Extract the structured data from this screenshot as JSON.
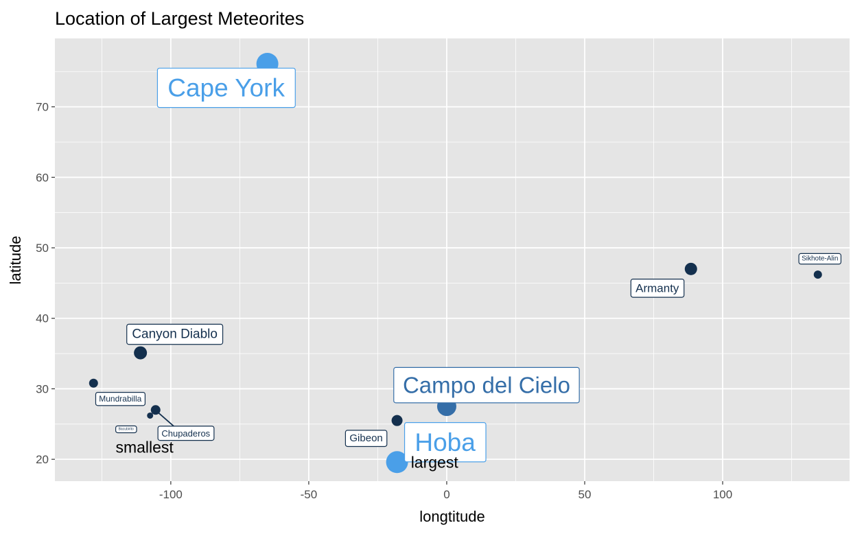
{
  "chart_data": {
    "type": "scatter",
    "title": "Location of Largest Meteorites",
    "xlabel": "longtitude",
    "ylabel": "latitude",
    "xlim": [
      -142,
      146
    ],
    "ylim": [
      16.9,
      79.7
    ],
    "x_ticks": [
      -100,
      -50,
      0,
      50,
      100
    ],
    "x_tick_labels": [
      "-100",
      "-50",
      "0",
      "50",
      "100"
    ],
    "y_ticks": [
      20,
      30,
      40,
      50,
      60,
      70
    ],
    "y_tick_labels": [
      "20",
      "30",
      "40",
      "50",
      "60",
      "70"
    ],
    "grid": true,
    "legend": "none",
    "colors": {
      "panel": "#e5e5e5",
      "grid": "#ffffff",
      "dark": "#14304e",
      "mid": "#356ea8",
      "light": "#4a9fe8"
    },
    "points": [
      {
        "name": "Cape York",
        "x": -65,
        "y": 76.1,
        "color": "#4a9fe8"
      },
      {
        "name": "Hoba",
        "x": -18,
        "y": 19.6,
        "color": "#4a9fe8"
      },
      {
        "name": "Campo del Cielo",
        "x": 0,
        "y": 27.5,
        "color": "#356ea8"
      },
      {
        "name": "Canyon Diablo",
        "x": -111,
        "y": 35.1,
        "color": "#14304e"
      },
      {
        "name": "Armanty",
        "x": 88.5,
        "y": 47.0,
        "color": "#14304e"
      },
      {
        "name": "Gibeon",
        "x": -18,
        "y": 25.5,
        "color": "#14304e"
      },
      {
        "name": "Chupaderos",
        "x": -105.5,
        "y": 27.0,
        "color": "#14304e"
      },
      {
        "name": "Mundrabilla",
        "x": -128,
        "y": 30.8,
        "color": "#14304e"
      },
      {
        "name": "Sikhote-Alin",
        "x": 134.5,
        "y": 46.2,
        "color": "#14304e"
      },
      {
        "name": "Bacubirito",
        "x": -107.5,
        "y": 26.2,
        "color": "#14304e"
      }
    ],
    "annotations": [
      {
        "text": "largest",
        "x": -13,
        "y": 19.6
      },
      {
        "text": "smallest",
        "x": -120,
        "y": 21.7
      }
    ]
  }
}
